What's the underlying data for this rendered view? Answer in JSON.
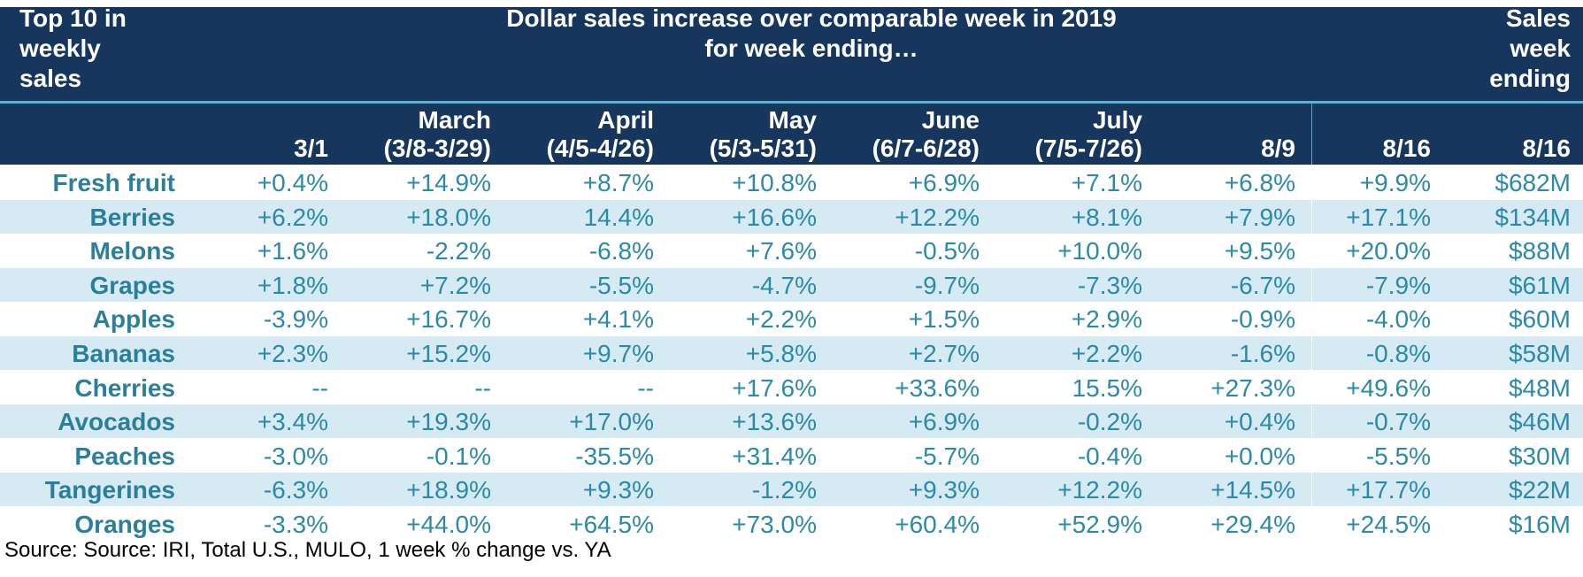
{
  "header": {
    "left": "Top 10 in\nweekly\nsales",
    "center": "Dollar sales increase over comparable week in 2019\nfor week ending…",
    "right": "Sales\nweek\nending"
  },
  "columns": [
    "3/1",
    "March\n(3/8-3/29)",
    "April\n(4/5-4/26)",
    "May\n(5/3-5/31)",
    "June\n(6/7-6/28)",
    "July\n(7/5-7/26)",
    "8/9",
    "8/16",
    "8/16"
  ],
  "chart_data": {
    "type": "table",
    "title": "Dollar sales increase over comparable week in 2019 for week ending…",
    "columns": [
      "Top 10 in weekly sales",
      "3/1",
      "March (3/8-3/29)",
      "April (4/5-4/26)",
      "May (5/3-5/31)",
      "June (6/7-6/28)",
      "July (7/5-7/26)",
      "8/9",
      "8/16",
      "Sales week ending 8/16"
    ],
    "rows": [
      [
        "Fresh fruit",
        "+0.4%",
        "+14.9%",
        "+8.7%",
        "+10.8%",
        "+6.9%",
        "+7.1%",
        "+6.8%",
        "+9.9%",
        "$682M"
      ],
      [
        "Berries",
        "+6.2%",
        "+18.0%",
        "14.4%",
        "+16.6%",
        "+12.2%",
        "+8.1%",
        "+7.9%",
        "+17.1%",
        "$134M"
      ],
      [
        "Melons",
        "+1.6%",
        "-2.2%",
        "-6.8%",
        "+7.6%",
        "-0.5%",
        "+10.0%",
        "+9.5%",
        "+20.0%",
        "$88M"
      ],
      [
        "Grapes",
        "+1.8%",
        "+7.2%",
        "-5.5%",
        "-4.7%",
        "-9.7%",
        "-7.3%",
        "-6.7%",
        "-7.9%",
        "$61M"
      ],
      [
        "Apples",
        "-3.9%",
        "+16.7%",
        "+4.1%",
        "+2.2%",
        "+1.5%",
        "+2.9%",
        "-0.9%",
        "-4.0%",
        "$60M"
      ],
      [
        "Bananas",
        "+2.3%",
        "+15.2%",
        "+9.7%",
        "+5.8%",
        "+2.7%",
        "+2.2%",
        "-1.6%",
        "-0.8%",
        "$58M"
      ],
      [
        "Cherries",
        "--",
        "--",
        "--",
        "+17.6%",
        "+33.6%",
        "15.5%",
        "+27.3%",
        "+49.6%",
        "$48M"
      ],
      [
        "Avocados",
        "+3.4%",
        "+19.3%",
        "+17.0%",
        "+13.6%",
        "+6.9%",
        "-0.2%",
        "+0.4%",
        "-0.7%",
        "$46M"
      ],
      [
        "Peaches",
        "-3.0%",
        "-0.1%",
        "-35.5%",
        "+31.4%",
        "-5.7%",
        "-0.4%",
        "+0.0%",
        "-5.5%",
        "$30M"
      ],
      [
        "Tangerines",
        "-6.3%",
        "+18.9%",
        "+9.3%",
        "-1.2%",
        "+9.3%",
        "+12.2%",
        "+14.5%",
        "+17.7%",
        "$22M"
      ],
      [
        "Oranges",
        "-3.3%",
        "+44.0%",
        "+64.5%",
        "+73.0%",
        "+60.4%",
        "+52.9%",
        "+29.4%",
        "+24.5%",
        "$16M"
      ]
    ]
  },
  "source": "Source: Source: IRI, Total U.S., MULO, 1 week % change vs. YA",
  "colors": {
    "header_bg": "#17365d",
    "accent_line": "#5bafd0",
    "row_shade": "#d5eaf3",
    "value_text": "#2b8aa8"
  }
}
